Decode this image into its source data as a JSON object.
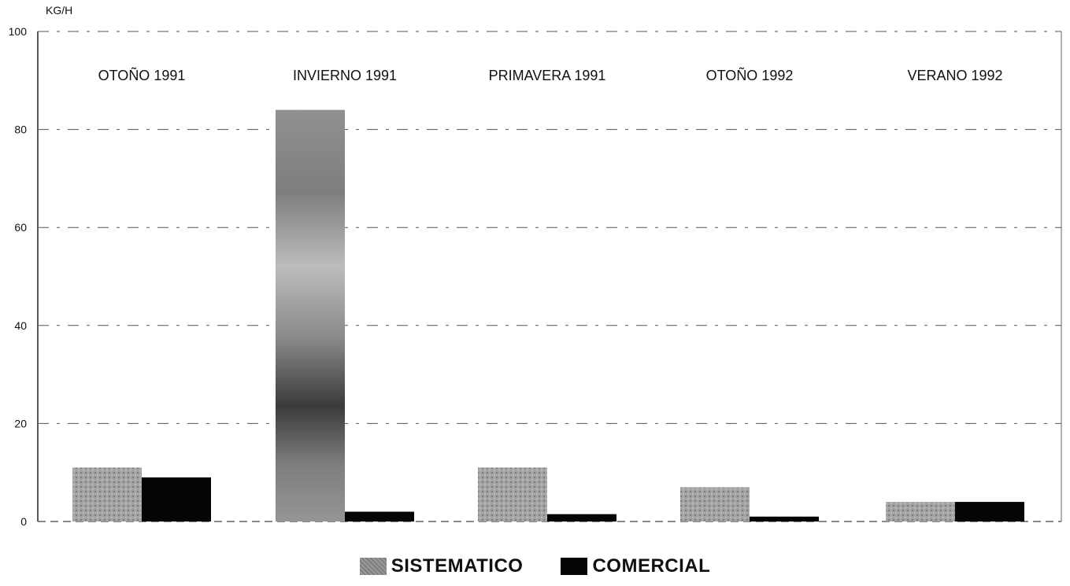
{
  "chart_data": {
    "type": "bar",
    "title": "",
    "xlabel": "",
    "ylabel": "KG/H",
    "ylim": [
      0,
      100
    ],
    "yticks": [
      "0",
      "20",
      "40",
      "60",
      "80",
      "100"
    ],
    "grid": true,
    "legend_position": "bottom",
    "categories": [
      "OTOÑO 1991",
      "INVIERNO 1991",
      "PRIMAVERA 1991",
      "OTOÑO 1992",
      "VERANO 1992"
    ],
    "series": [
      {
        "name": "SISTEMATICO",
        "color": "#9a9a9a",
        "values": [
          11,
          84,
          11,
          7,
          4
        ]
      },
      {
        "name": "COMERCIAL",
        "color": "#050505",
        "values": [
          9,
          2,
          1.5,
          1,
          4
        ]
      }
    ]
  }
}
